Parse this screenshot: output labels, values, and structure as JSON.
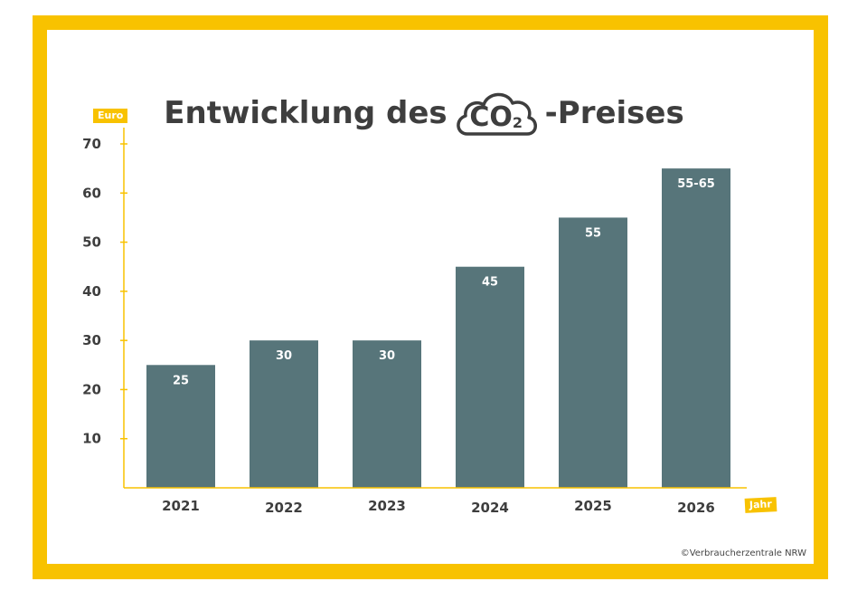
{
  "title": {
    "before": "Entwicklung des",
    "co2_main": "CO",
    "co2_sub": "2",
    "after": "-Preises"
  },
  "copyright": "©Verbraucherzentrale NRW",
  "colors": {
    "frame": "#f8c200",
    "bar": "#57757a",
    "axis": "#f8c200",
    "text": "#3e3e3e"
  },
  "chart_data": {
    "type": "bar",
    "ylabel": "Euro",
    "xlabel": "Jahr",
    "ylim": [
      0,
      70
    ],
    "yticks": [
      10,
      20,
      30,
      40,
      50,
      60,
      70
    ],
    "grid": false,
    "categories": [
      "2021",
      "2022",
      "2023",
      "2024",
      "2025",
      "2026"
    ],
    "values": [
      25,
      30,
      30,
      45,
      55,
      65
    ],
    "data_labels": [
      "25",
      "30",
      "30",
      "45",
      "55",
      "55-65"
    ]
  }
}
